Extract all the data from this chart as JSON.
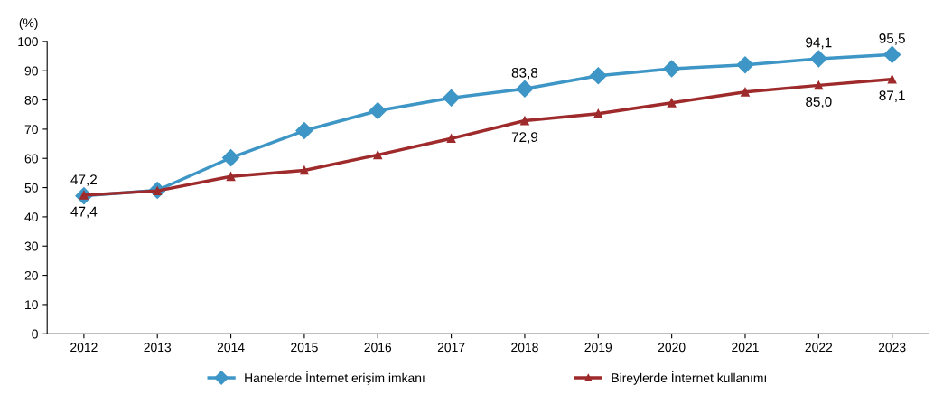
{
  "chart_data": {
    "type": "line",
    "ylabel": "(%)",
    "categories": [
      "2012",
      "2013",
      "2014",
      "2015",
      "2016",
      "2017",
      "2018",
      "2019",
      "2020",
      "2021",
      "2022",
      "2023"
    ],
    "series": [
      {
        "name": "Hanelerde İnternet erişim imkanı",
        "color": "#3d96c6",
        "marker": "diamond",
        "values": [
          47.2,
          49.1,
          60.2,
          69.5,
          76.3,
          80.7,
          83.8,
          88.3,
          90.7,
          92.0,
          94.1,
          95.5
        ],
        "value_labels": [
          "47,2",
          null,
          null,
          null,
          null,
          null,
          "83,8",
          null,
          null,
          null,
          "94,1",
          "95,5"
        ]
      },
      {
        "name": "Bireylerde İnternet kullanımı",
        "color": "#9e2a2b",
        "marker": "triangle",
        "values": [
          47.4,
          48.9,
          53.8,
          55.9,
          61.2,
          66.8,
          72.9,
          75.3,
          79.0,
          82.7,
          85.0,
          87.1
        ],
        "value_labels": [
          "47,4",
          null,
          null,
          null,
          null,
          null,
          "72,9",
          null,
          null,
          null,
          "85,0",
          "87,1"
        ]
      }
    ],
    "ylim": [
      0,
      100
    ],
    "yticks": [
      0,
      10,
      20,
      30,
      40,
      50,
      60,
      70,
      80,
      90,
      100
    ],
    "grid": false,
    "legend": "bottom"
  }
}
